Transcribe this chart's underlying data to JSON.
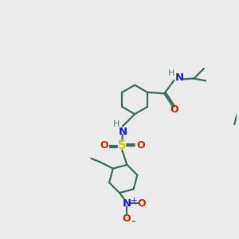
{
  "bg_color": "#ebebeb",
  "bond_color": "#3d6b5e",
  "atom_colors": {
    "N": "#1a1acc",
    "O": "#cc2200",
    "S": "#cccc00",
    "H": "#5a7a75"
  },
  "ring_r": 0.62,
  "lw": 1.6,
  "fs": 8.5
}
